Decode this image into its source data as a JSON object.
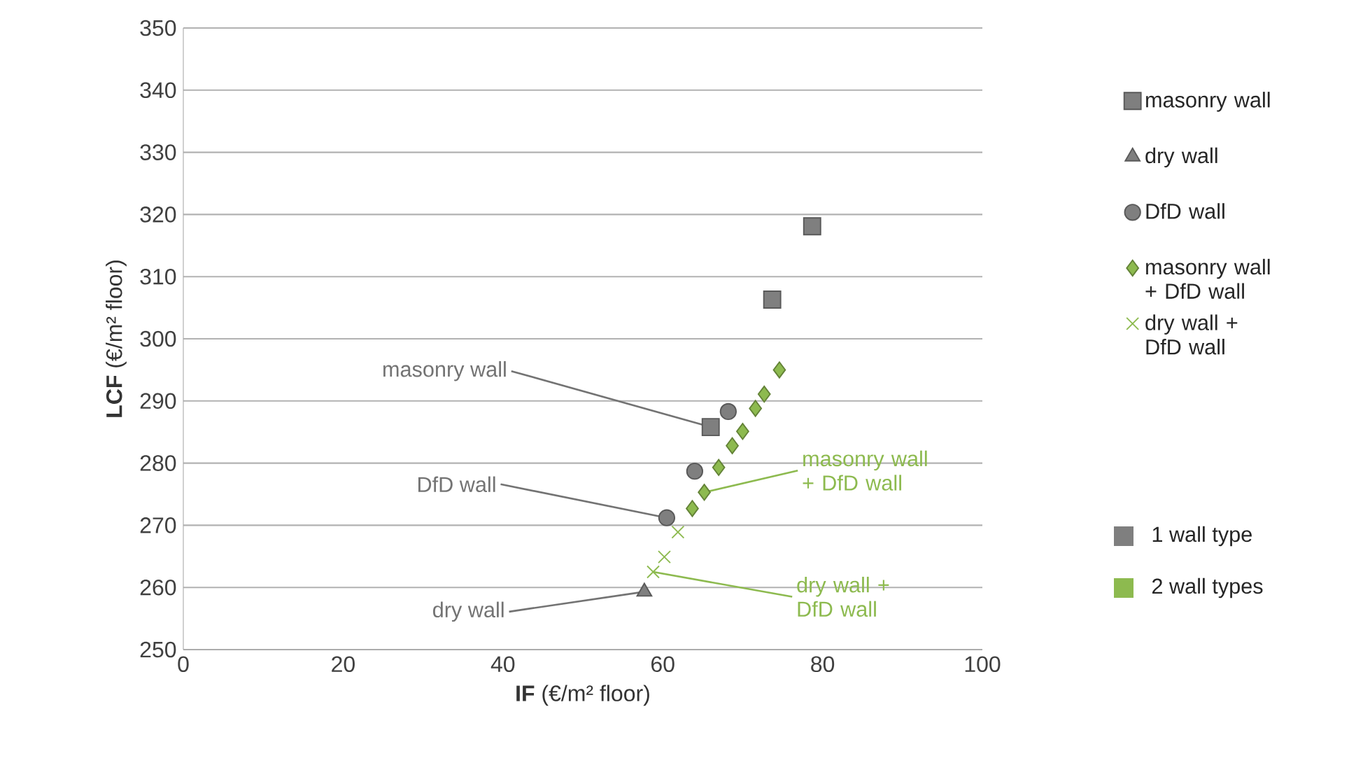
{
  "chart_data": {
    "type": "scatter",
    "xlabel": "**IF** (€/m² floor)",
    "ylabel": "**LCF** (€/m² floor)",
    "xlim": [
      0,
      100
    ],
    "xticks": [
      0,
      20,
      40,
      60,
      80,
      100
    ],
    "ylim": [
      250,
      350
    ],
    "yticks": [
      250,
      260,
      270,
      280,
      290,
      300,
      310,
      320,
      330,
      340,
      350
    ],
    "grid": "y",
    "legend": "right",
    "series": [
      {
        "name": "masonry wall",
        "color": "#7f7f7f",
        "marker": "square",
        "x": [
          78.7,
          73.7,
          66.0
        ],
        "values": [
          318.1,
          306.3,
          285.8
        ]
      },
      {
        "name": "dry wall",
        "color": "#7f7f7f",
        "marker": "triangle",
        "x": [
          57.7
        ],
        "values": [
          259.3
        ]
      },
      {
        "name": "DfD wall",
        "color": "#7f7f7f",
        "marker": "circle",
        "x": [
          68.2,
          64.0,
          60.5
        ],
        "values": [
          288.3,
          278.7,
          271.2
        ]
      },
      {
        "name": "masonry wall + DfD wall",
        "color": "#8dba4f",
        "marker": "diamond",
        "x": [
          74.6,
          72.7,
          71.6,
          70.0,
          68.7,
          67.0,
          65.2,
          63.7
        ],
        "values": [
          295.0,
          291.1,
          288.8,
          285.1,
          282.8,
          279.3,
          275.3,
          272.7
        ]
      },
      {
        "name": "dry wall + DfD wall",
        "color": "#8dba4f",
        "marker": "cross",
        "x": [
          61.9,
          60.2,
          58.8
        ],
        "values": [
          268.9,
          264.9,
          262.5
        ]
      }
    ],
    "annotations": [
      {
        "text": "masonry wall",
        "x": 66.0,
        "y": 285.8
      },
      {
        "text": "DfD wall",
        "x": 60.5,
        "y": 271.2
      },
      {
        "text": "dry wall",
        "x": 57.7,
        "y": 259.3
      },
      {
        "text": "masonry wall + DfD wall",
        "x": 65.2,
        "y": 275.3
      },
      {
        "text": "dry wall + DfD wall",
        "x": 58.8,
        "y": 262.5
      },
      "1 wall type",
      "2 wall types"
    ]
  }
}
